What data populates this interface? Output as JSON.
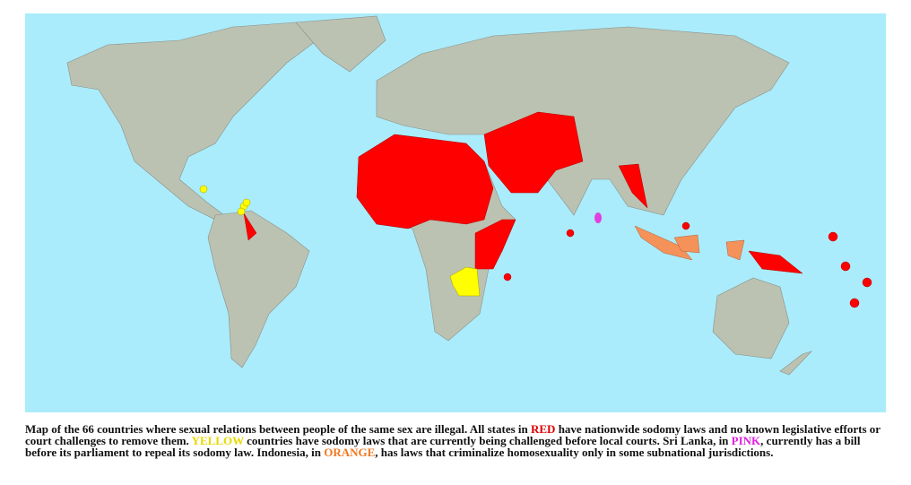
{
  "caption": {
    "segments": [
      "Map of the 66 countries where sexual relations between people of the same sex are illegal. All states in ",
      "RED",
      " have nationwide sodomy laws and no known legislative efforts or court challenges to remove them. ",
      "YELLOW",
      " countries have sodomy laws that are currently being challenged before local courts. Sri Lanka, in ",
      "PINK",
      ", currently has a bill before its parliament to repeal its sodomy law. Indonesia, in ",
      "ORANGE",
      ", has laws that criminalize homosexuality only in some subnational jurisdictions."
    ]
  }
}
